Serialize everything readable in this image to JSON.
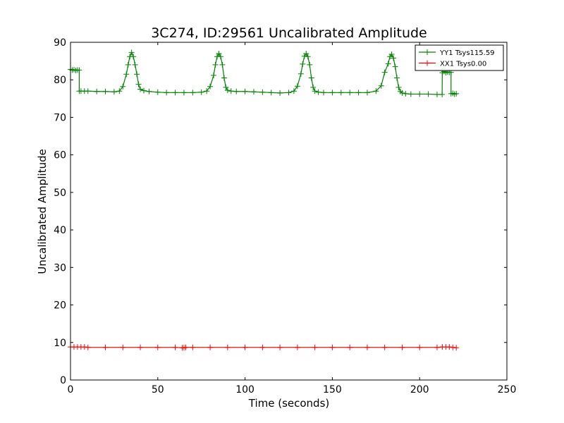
{
  "chart_data": {
    "type": "line",
    "title": "3C274, ID:29561 Uncalibrated Amplitude",
    "xlabel": "Time (seconds)",
    "ylabel": "Uncalibrated Amplitude",
    "xlim": [
      0,
      250
    ],
    "ylim": [
      0,
      90
    ],
    "xticks": [
      0,
      50,
      100,
      150,
      200,
      250
    ],
    "yticks": [
      0,
      10,
      20,
      30,
      40,
      50,
      60,
      70,
      80,
      90
    ],
    "grid": false,
    "legend_position": "top-right",
    "series": [
      {
        "name": "YY1 Tsys115.59",
        "color": "#008000",
        "marker": "+",
        "x": [
          0,
          1,
          2,
          3,
          4,
          5,
          5.01,
          6,
          8,
          10,
          15,
          20,
          25,
          28,
          30,
          32,
          33,
          34,
          35,
          36,
          37,
          38,
          39,
          40,
          42,
          45,
          50,
          55,
          60,
          65,
          70,
          75,
          78,
          80,
          82,
          83,
          84,
          85,
          86,
          87,
          88,
          89,
          90,
          92,
          95,
          100,
          105,
          110,
          115,
          120,
          125,
          128,
          130,
          132,
          133,
          134,
          135,
          136,
          137,
          138,
          139,
          140,
          142,
          145,
          150,
          155,
          160,
          165,
          170,
          175,
          178,
          180,
          182,
          183,
          184,
          185,
          186,
          187,
          188,
          189,
          190,
          192,
          195,
          200,
          205,
          210,
          212.9,
          213,
          214,
          215,
          216,
          217,
          218,
          218.01,
          219,
          220,
          221
        ],
        "values": [
          82.8,
          82.6,
          82.7,
          82.5,
          82.6,
          82.6,
          77,
          77,
          77,
          77,
          76.9,
          76.9,
          76.8,
          77,
          78.2,
          81.5,
          84,
          86.2,
          87.3,
          86.2,
          84,
          81.5,
          78.8,
          77.5,
          77.1,
          76.9,
          76.7,
          76.6,
          76.6,
          76.6,
          76.6,
          76.7,
          77,
          78.2,
          81.2,
          84,
          86.2,
          87,
          86.2,
          84,
          80.5,
          78,
          77.2,
          77,
          76.9,
          76.9,
          76.8,
          76.7,
          76.6,
          76.5,
          76.6,
          77,
          78.3,
          81.6,
          84.2,
          86.3,
          87,
          86.2,
          84,
          80.5,
          78,
          77,
          76.7,
          76.6,
          76.6,
          76.6,
          76.6,
          76.6,
          76.6,
          77,
          78.4,
          82,
          84.3,
          86.2,
          86.8,
          85.8,
          83.5,
          80.5,
          78,
          76.9,
          76.5,
          76.3,
          76.2,
          76.2,
          76.2,
          76.1,
          76.1,
          81.9,
          82.2,
          81.9,
          82.1,
          82,
          82,
          76.3,
          76.4,
          76.2,
          76.3
        ]
      },
      {
        "name": "XX1 Tsys0.00",
        "color": "#ff0000",
        "marker": "+",
        "x": [
          0,
          2,
          4,
          6,
          8,
          10,
          20,
          30,
          40,
          50,
          60,
          64,
          65,
          66,
          70,
          80,
          90,
          100,
          110,
          120,
          130,
          140,
          150,
          160,
          170,
          180,
          190,
          200,
          210,
          213,
          215,
          217,
          219,
          221
        ],
        "values": [
          8.8,
          8.8,
          8.8,
          8.8,
          8.8,
          8.7,
          8.7,
          8.7,
          8.7,
          8.7,
          8.7,
          8.6,
          8.6,
          8.7,
          8.7,
          8.7,
          8.7,
          8.7,
          8.7,
          8.7,
          8.7,
          8.7,
          8.7,
          8.7,
          8.7,
          8.7,
          8.7,
          8.7,
          8.7,
          8.8,
          8.8,
          8.8,
          8.7,
          8.6
        ]
      }
    ]
  }
}
